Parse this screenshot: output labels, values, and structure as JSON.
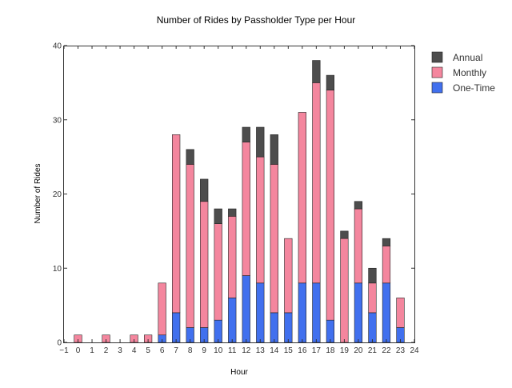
{
  "chart_data": {
    "type": "bar",
    "stacked": true,
    "title": "Number of Rides by Passholder Type per Hour",
    "xlabel": "Hour",
    "ylabel": "Number of Rides",
    "xlim": [
      -1,
      24
    ],
    "ylim": [
      0,
      40
    ],
    "x_ticks": [
      -1,
      0,
      1,
      2,
      3,
      4,
      5,
      6,
      7,
      8,
      9,
      10,
      11,
      12,
      13,
      14,
      15,
      16,
      17,
      18,
      19,
      20,
      21,
      22,
      23,
      24
    ],
    "x_tick_labels": [
      "−1",
      "0",
      "1",
      "2",
      "3",
      "4",
      "5",
      "6",
      "7",
      "8",
      "9",
      "10",
      "11",
      "12",
      "13",
      "14",
      "15",
      "16",
      "17",
      "18",
      "19",
      "20",
      "21",
      "22",
      "23",
      "24"
    ],
    "y_ticks": [
      0,
      10,
      20,
      30,
      40
    ],
    "y_tick_labels": [
      "0",
      "10",
      "20",
      "30",
      "40"
    ],
    "categories": [
      0,
      1,
      2,
      3,
      4,
      5,
      6,
      7,
      8,
      9,
      10,
      11,
      12,
      13,
      14,
      15,
      16,
      17,
      18,
      19,
      20,
      21,
      22,
      23
    ],
    "series": [
      {
        "name": "One-Time",
        "color": "#4170ee",
        "values": [
          0,
          0,
          0,
          0,
          0,
          0,
          1,
          4,
          2,
          2,
          3,
          6,
          9,
          8,
          4,
          4,
          8,
          8,
          3,
          0,
          8,
          4,
          8,
          2
        ]
      },
      {
        "name": "Monthly",
        "color": "#f4869e",
        "values": [
          1,
          0,
          1,
          0,
          1,
          1,
          7,
          24,
          22,
          17,
          13,
          11,
          18,
          17,
          20,
          10,
          23,
          27,
          31,
          14,
          10,
          4,
          5,
          4
        ]
      },
      {
        "name": "Annual",
        "color": "#4d4d4d",
        "values": [
          0,
          0,
          0,
          0,
          0,
          0,
          0,
          0,
          2,
          3,
          2,
          1,
          2,
          4,
          4,
          0,
          0,
          3,
          2,
          1,
          1,
          2,
          1,
          0
        ]
      }
    ],
    "legend": {
      "position": "top-right",
      "order": [
        "Annual",
        "Monthly",
        "One-Time"
      ]
    },
    "grid": false
  }
}
